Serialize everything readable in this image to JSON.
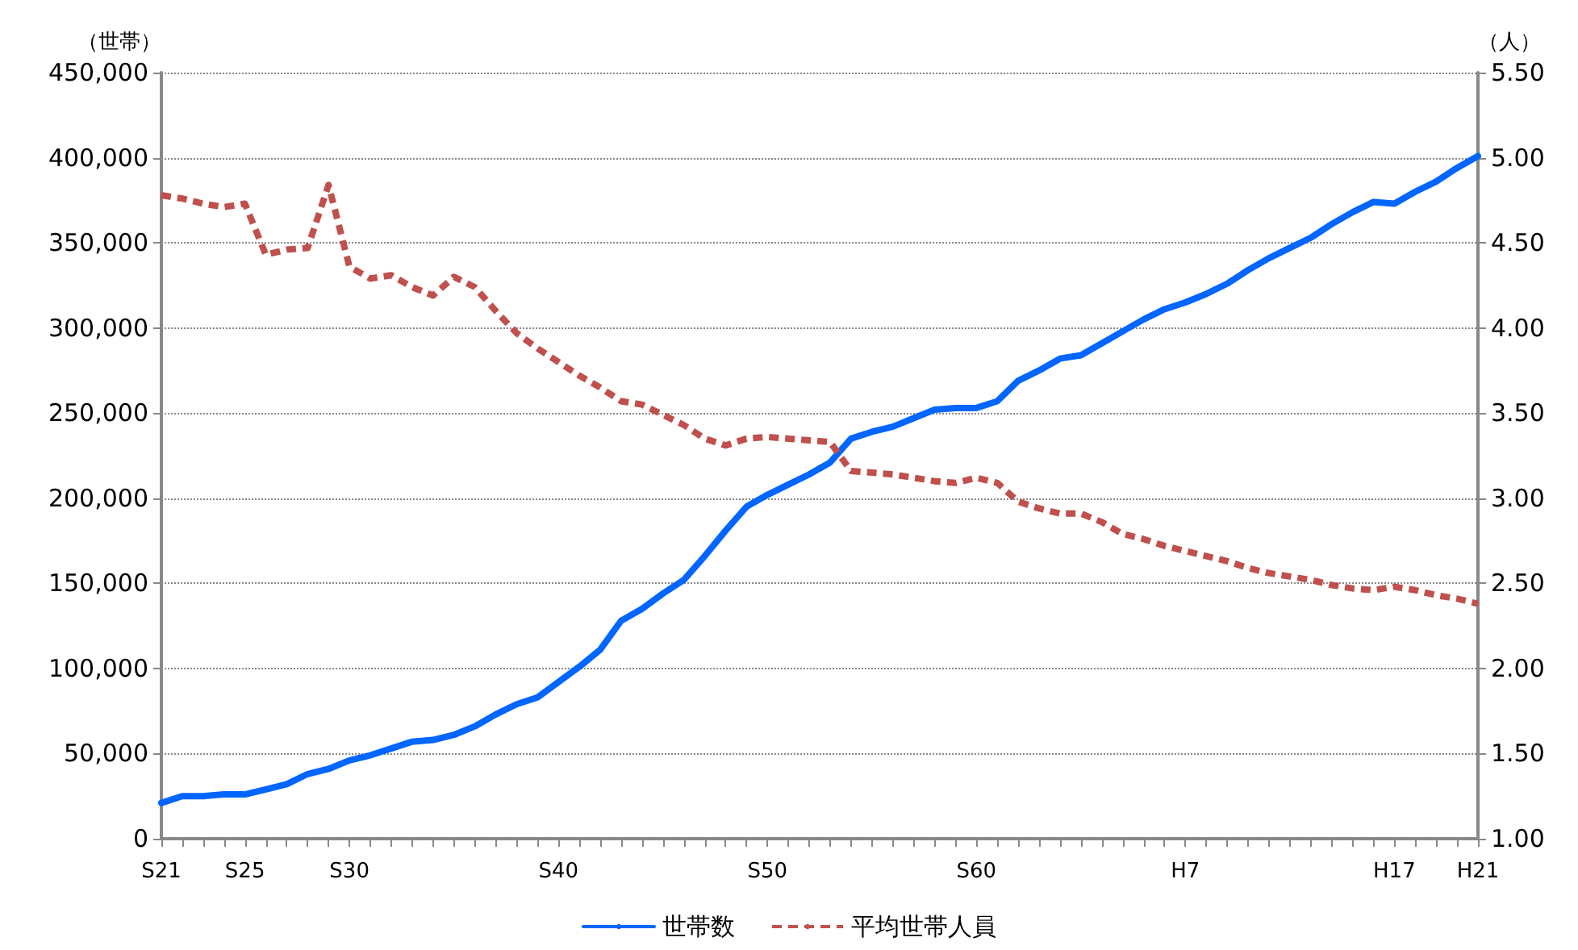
{
  "chart_data": {
    "type": "line",
    "ylabel": "（世帯）",
    "y2label": "（人）",
    "categories": [
      "S21",
      null,
      null,
      null,
      "S25",
      null,
      null,
      null,
      null,
      "S30",
      null,
      null,
      null,
      null,
      null,
      null,
      null,
      null,
      null,
      "S40",
      null,
      null,
      null,
      null,
      null,
      null,
      null,
      null,
      null,
      "S50",
      null,
      null,
      null,
      null,
      null,
      null,
      null,
      null,
      null,
      "S60",
      null,
      null,
      null,
      null,
      null,
      null,
      null,
      null,
      null,
      "H7",
      null,
      null,
      null,
      null,
      null,
      null,
      null,
      null,
      null,
      "H17",
      null,
      null,
      null,
      "H21"
    ],
    "series": [
      {
        "name": "世帯数",
        "color": "#0066ff",
        "line_style": "solid",
        "values": [
          21000,
          25000,
          25000,
          26000,
          26000,
          29000,
          32000,
          38000,
          41000,
          46000,
          49000,
          53000,
          57000,
          58000,
          61000,
          66000,
          73000,
          79000,
          83000,
          92000,
          101000,
          111000,
          128000,
          135000,
          144000,
          152000,
          166000,
          181000,
          195000,
          202000,
          208000,
          214000,
          221000,
          235000,
          239000,
          242000,
          247000,
          252000,
          253000,
          253000,
          257000,
          269000,
          275000,
          282000,
          284000,
          291000,
          298000,
          305000,
          311000,
          315000,
          320000,
          326000,
          334000,
          341000,
          347000,
          353000,
          361000,
          368000,
          374000,
          373000,
          380000,
          386000,
          394000,
          401000
        ]
      },
      {
        "name": "平均世帯人員",
        "color": "#c0504d",
        "axis": "y2",
        "line_style": "dashed",
        "values": [
          4.78,
          4.76,
          4.73,
          4.71,
          4.73,
          4.43,
          4.46,
          4.47,
          4.84,
          4.36,
          4.29,
          4.31,
          4.24,
          4.19,
          4.3,
          4.24,
          4.1,
          3.97,
          3.88,
          3.8,
          3.72,
          3.65,
          3.57,
          3.55,
          3.49,
          3.43,
          3.35,
          3.31,
          3.35,
          3.36,
          3.35,
          3.34,
          3.33,
          3.16,
          3.15,
          3.14,
          3.12,
          3.1,
          3.09,
          3.12,
          3.09,
          2.98,
          2.94,
          2.91,
          2.91,
          2.86,
          2.79,
          2.76,
          2.72,
          2.69,
          2.66,
          2.63,
          2.59,
          2.56,
          2.54,
          2.52,
          2.49,
          2.47,
          2.46,
          2.48,
          2.46,
          2.43,
          2.41,
          2.38
        ]
      }
    ],
    "ylim": [
      0,
      450000
    ],
    "yticks": [
      {
        "value": 0,
        "label": "0"
      },
      {
        "value": 50000,
        "label": "50,000"
      },
      {
        "value": 100000,
        "label": "100,000"
      },
      {
        "value": 150000,
        "label": "150,000"
      },
      {
        "value": 200000,
        "label": "200,000"
      },
      {
        "value": 250000,
        "label": "250,000"
      },
      {
        "value": 300000,
        "label": "300,000"
      },
      {
        "value": 350000,
        "label": "350,000"
      },
      {
        "value": 400000,
        "label": "400,000"
      },
      {
        "value": 450000,
        "label": "450,000"
      }
    ],
    "y2lim": [
      1,
      5.5
    ],
    "y2ticks": [
      {
        "value": 1,
        "label": "1.00"
      },
      {
        "value": 1.5,
        "label": "1.50"
      },
      {
        "value": 2,
        "label": "2.00"
      },
      {
        "value": 2.5,
        "label": "2.50"
      },
      {
        "value": 3,
        "label": "3.00"
      },
      {
        "value": 3.5,
        "label": "3.50"
      },
      {
        "value": 4,
        "label": "4.00"
      },
      {
        "value": 4.5,
        "label": "4.50"
      },
      {
        "value": 5,
        "label": "5.00"
      },
      {
        "value": 5.5,
        "label": "5.50"
      }
    ],
    "grid": "y",
    "legend": "bottom",
    "marker": "none"
  }
}
